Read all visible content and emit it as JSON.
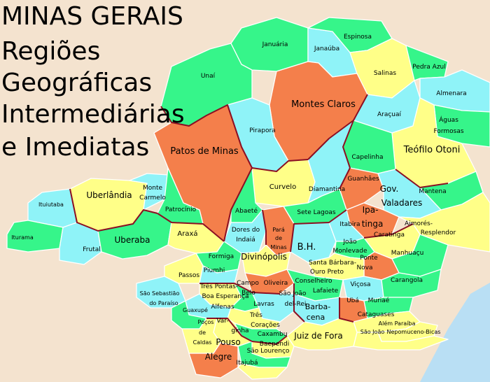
{
  "title": {
    "lines": [
      "MINAS GERAIS",
      "Regiões",
      "Geográficas",
      "Intermediárias",
      "e Imediatas"
    ]
  },
  "colors": {
    "background": "#f4e3cf",
    "ocean": "#b9dff4",
    "orange": "#f47f4b",
    "cyan": "#8ff3f8",
    "green": "#36f58a",
    "yellow": "#ffff88",
    "intermediate_border": "#8b0f23",
    "immediate_border": "#ffffff"
  },
  "regions": [
    {
      "name": "Unaí",
      "color": "green"
    },
    {
      "name": "Januária",
      "color": "green"
    },
    {
      "name": "Janaúba",
      "color": "cyan"
    },
    {
      "name": "Espinosa",
      "color": "green"
    },
    {
      "name": "Salinas",
      "color": "yellow"
    },
    {
      "name": "Pedra Azul",
      "color": "green"
    },
    {
      "name": "Almenara",
      "color": "cyan"
    },
    {
      "name": "Montes Claros",
      "color": "orange"
    },
    {
      "name": "Pirapora",
      "color": "cyan"
    },
    {
      "name": "Araçuaí",
      "color": "cyan"
    },
    {
      "name": "Águas Formosas",
      "color": "green"
    },
    {
      "name": "Patos de Minas",
      "color": "orange"
    },
    {
      "name": "Teófilo Otoni",
      "color": "yellow"
    },
    {
      "name": "Capelinha",
      "color": "green"
    },
    {
      "name": "Curvelo",
      "color": "yellow"
    },
    {
      "name": "Diamantina",
      "color": "cyan"
    },
    {
      "name": "Guanhães",
      "color": "orange"
    },
    {
      "name": "Gov. Valadares",
      "color": "cyan"
    },
    {
      "name": "Mantena",
      "color": "green"
    },
    {
      "name": "Uberlândia",
      "color": "yellow"
    },
    {
      "name": "Monte Carmelo",
      "color": "cyan"
    },
    {
      "name": "Ituiutaba",
      "color": "cyan"
    },
    {
      "name": "Patrocínio",
      "color": "green"
    },
    {
      "name": "Abaeté",
      "color": "green"
    },
    {
      "name": "Sete Lagoas",
      "color": "green"
    },
    {
      "name": "Ipatinga",
      "color": "orange"
    },
    {
      "name": "Aimorés-Resplendor",
      "color": "yellow"
    },
    {
      "name": "Iturama",
      "color": "green"
    },
    {
      "name": "Frutal",
      "color": "cyan"
    },
    {
      "name": "Uberaba",
      "color": "green"
    },
    {
      "name": "Araxá",
      "color": "yellow"
    },
    {
      "name": "Dores do Indaiá",
      "color": "cyan"
    },
    {
      "name": "Pará de Minas",
      "color": "orange"
    },
    {
      "name": "B.H.",
      "color": "cyan"
    },
    {
      "name": "Itabira",
      "color": "cyan"
    },
    {
      "name": "Caratinga",
      "color": "yellow"
    },
    {
      "name": "Manhuaçu",
      "color": "green"
    },
    {
      "name": "Formiga",
      "color": "green"
    },
    {
      "name": "Divinópolis",
      "color": "yellow"
    },
    {
      "name": "João Monlevade",
      "color": "green"
    },
    {
      "name": "Ponte Nova",
      "color": "orange"
    },
    {
      "name": "Santa Bárbara-Ouro Preto",
      "color": "yellow"
    },
    {
      "name": "Passos",
      "color": "yellow"
    },
    {
      "name": "Piumhi",
      "color": "cyan"
    },
    {
      "name": "Oliveira",
      "color": "orange"
    },
    {
      "name": "Conselheiro Lafaiete",
      "color": "green"
    },
    {
      "name": "Viçosa",
      "color": "cyan"
    },
    {
      "name": "Carangola",
      "color": "green"
    },
    {
      "name": "Três Pontas-Boa Esperança",
      "color": "yellow"
    },
    {
      "name": "Campo Belo",
      "color": "green"
    },
    {
      "name": "São João del-Rei",
      "color": "cyan"
    },
    {
      "name": "Barbacena",
      "color": "cyan"
    },
    {
      "name": "Ubá",
      "color": "orange"
    },
    {
      "name": "Muriaé",
      "color": "green"
    },
    {
      "name": "São Sebastião do Paraíso",
      "color": "cyan"
    },
    {
      "name": "Alfenas",
      "color": "cyan"
    },
    {
      "name": "Lavras",
      "color": "yellow"
    },
    {
      "name": "Guaxupé",
      "color": "green"
    },
    {
      "name": "Três Corações",
      "color": "green"
    },
    {
      "name": "Varginha",
      "color": "yellow"
    },
    {
      "name": "Cataguases",
      "color": "yellow"
    },
    {
      "name": "Além Paraíba",
      "color": "yellow"
    },
    {
      "name": "São João Nepomuceno-Bicas",
      "color": "yellow"
    },
    {
      "name": "Juiz de Fora",
      "color": "yellow"
    },
    {
      "name": "Poços de Caldas",
      "color": "yellow"
    },
    {
      "name": "Caxambu-Baependi",
      "color": "yellow"
    },
    {
      "name": "Pouso Alegre",
      "color": "orange"
    },
    {
      "name": "São Lourenço",
      "color": "green"
    },
    {
      "name": "Itajubá",
      "color": "yellow"
    }
  ]
}
